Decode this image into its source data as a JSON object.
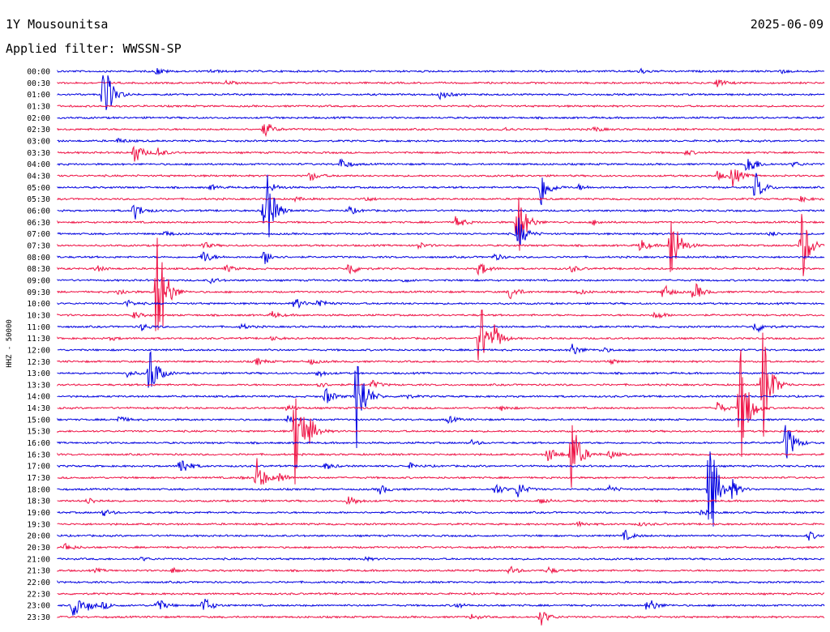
{
  "header": {
    "station": "1Y Mousounitsa",
    "date": "2025-06-09",
    "filter": "Applied filter: WWSSN-SP"
  },
  "axis": {
    "ylabel": "HHZ - 50000"
  },
  "colors": {
    "trace_a": "#0000e0",
    "trace_b": "#ee1144",
    "background": "#ffffff",
    "text": "#000000"
  },
  "chart_data": {
    "type": "line",
    "title": "",
    "xlabel": "",
    "ylabel": "HHZ - 50000",
    "grid": false,
    "legend": "none",
    "row_labels": [
      "00:00",
      "00:30",
      "01:00",
      "01:30",
      "02:00",
      "02:30",
      "03:00",
      "03:30",
      "04:00",
      "04:30",
      "05:00",
      "05:30",
      "06:00",
      "06:30",
      "07:00",
      "07:30",
      "08:00",
      "08:30",
      "09:00",
      "09:30",
      "10:00",
      "10:30",
      "11:00",
      "11:30",
      "12:00",
      "12:30",
      "13:00",
      "13:30",
      "14:00",
      "14:30",
      "15:00",
      "15:30",
      "16:00",
      "16:30",
      "17:00",
      "17:30",
      "18:00",
      "18:30",
      "19:00",
      "19:30",
      "20:00",
      "20:30",
      "21:00",
      "21:30",
      "22:00",
      "22:30",
      "23:00",
      "23:30"
    ],
    "row_colors": [
      "#0000e0",
      "#ee1144"
    ],
    "events": [
      [
        [
          0.13,
          0.04
        ],
        [
          0.2,
          0.02
        ],
        [
          0.76,
          0.03
        ],
        [
          0.94,
          0.03
        ]
      ],
      [
        [
          0.22,
          0.02
        ],
        [
          0.86,
          0.05
        ]
      ],
      [
        [
          0.06,
          0.45
        ],
        [
          0.5,
          0.06
        ]
      ],
      [],
      [],
      [
        [
          0.27,
          0.1
        ],
        [
          0.58,
          0.03
        ],
        [
          0.7,
          0.03
        ]
      ],
      [
        [
          0.08,
          0.03
        ]
      ],
      [
        [
          0.1,
          0.14
        ],
        [
          0.13,
          0.06
        ],
        [
          0.82,
          0.03
        ]
      ],
      [
        [
          0.37,
          0.07
        ],
        [
          0.9,
          0.16
        ],
        [
          0.96,
          0.03
        ]
      ],
      [
        [
          0.33,
          0.06
        ],
        [
          0.86,
          0.05
        ],
        [
          0.88,
          0.14
        ]
      ],
      [
        [
          0.2,
          0.03
        ],
        [
          0.28,
          0.04
        ],
        [
          0.63,
          0.25
        ],
        [
          0.68,
          0.03
        ],
        [
          0.91,
          0.18
        ]
      ],
      [
        [
          0.31,
          0.02
        ],
        [
          0.4,
          0.03
        ],
        [
          0.97,
          0.03
        ]
      ],
      [
        [
          0.1,
          0.11
        ],
        [
          0.27,
          0.64
        ],
        [
          0.38,
          0.05
        ]
      ],
      [
        [
          0.52,
          0.08
        ],
        [
          0.6,
          0.45
        ],
        [
          0.7,
          0.03
        ]
      ],
      [
        [
          0.14,
          0.03
        ],
        [
          0.6,
          0.22
        ],
        [
          0.93,
          0.03
        ]
      ],
      [
        [
          0.19,
          0.04
        ],
        [
          0.47,
          0.04
        ],
        [
          0.76,
          0.08
        ],
        [
          0.8,
          0.48
        ],
        [
          0.97,
          0.48
        ]
      ],
      [
        [
          0.19,
          0.08
        ],
        [
          0.27,
          0.09
        ],
        [
          0.57,
          0.04
        ]
      ],
      [
        [
          0.05,
          0.04
        ],
        [
          0.22,
          0.04
        ],
        [
          0.38,
          0.09
        ],
        [
          0.55,
          0.09
        ],
        [
          0.67,
          0.04
        ]
      ],
      [
        [
          0.2,
          0.03
        ],
        [
          0.45,
          0.02
        ]
      ],
      [
        [
          0.08,
          0.04
        ],
        [
          0.13,
          0.95
        ],
        [
          0.59,
          0.09
        ],
        [
          0.68,
          0.03
        ],
        [
          0.79,
          0.09
        ],
        [
          0.83,
          0.12
        ]
      ],
      [
        [
          0.09,
          0.04
        ],
        [
          0.31,
          0.07
        ],
        [
          0.34,
          0.06
        ]
      ],
      [
        [
          0.1,
          0.04
        ],
        [
          0.28,
          0.04
        ],
        [
          0.78,
          0.05
        ]
      ],
      [
        [
          0.11,
          0.04
        ],
        [
          0.24,
          0.03
        ],
        [
          0.91,
          0.08
        ]
      ],
      [
        [
          0.07,
          0.02
        ],
        [
          0.28,
          0.02
        ],
        [
          0.55,
          0.52
        ],
        [
          0.57,
          0.12
        ]
      ],
      [
        [
          0.67,
          0.08
        ],
        [
          0.71,
          0.03
        ]
      ],
      [
        [
          0.26,
          0.04
        ],
        [
          0.33,
          0.03
        ],
        [
          0.72,
          0.03
        ]
      ],
      [
        [
          0.09,
          0.04
        ],
        [
          0.12,
          0.35
        ],
        [
          0.34,
          0.04
        ]
      ],
      [
        [
          0.34,
          0.04
        ],
        [
          0.41,
          0.05
        ],
        [
          0.92,
          0.72
        ]
      ],
      [
        [
          0.35,
          0.1
        ],
        [
          0.39,
          0.65
        ],
        [
          0.45,
          0.04
        ]
      ],
      [
        [
          0.3,
          0.04
        ],
        [
          0.58,
          0.03
        ],
        [
          0.86,
          0.08
        ],
        [
          0.89,
          0.8
        ]
      ],
      [
        [
          0.08,
          0.04
        ],
        [
          0.3,
          0.04
        ],
        [
          0.51,
          0.04
        ]
      ],
      [
        [
          0.31,
          0.7
        ],
        [
          0.33,
          0.1
        ]
      ],
      [
        [
          0.95,
          0.28
        ],
        [
          0.54,
          0.03
        ]
      ],
      [
        [
          0.64,
          0.1
        ],
        [
          0.67,
          0.5
        ],
        [
          0.72,
          0.05
        ]
      ],
      [
        [
          0.16,
          0.14
        ],
        [
          0.35,
          0.04
        ],
        [
          0.46,
          0.03
        ]
      ],
      [
        [
          0.24,
          0.01
        ],
        [
          0.26,
          0.22
        ],
        [
          0.29,
          0.06
        ]
      ],
      [
        [
          0.42,
          0.06
        ],
        [
          0.57,
          0.08
        ],
        [
          0.6,
          0.1
        ],
        [
          0.72,
          0.04
        ],
        [
          0.85,
          0.8
        ],
        [
          0.88,
          0.1
        ]
      ],
      [
        [
          0.04,
          0.04
        ],
        [
          0.38,
          0.07
        ],
        [
          0.63,
          0.04
        ]
      ],
      [
        [
          0.06,
          0.04
        ],
        [
          0.84,
          0.03
        ]
      ],
      [
        [
          0.68,
          0.03
        ],
        [
          0.76,
          0.02
        ]
      ],
      [
        [
          0.74,
          0.06
        ],
        [
          0.98,
          0.05
        ]
      ],
      [
        [
          0.01,
          0.05
        ]
      ],
      [
        [
          0.11,
          0.02
        ],
        [
          0.4,
          0.02
        ]
      ],
      [
        [
          0.05,
          0.02
        ],
        [
          0.15,
          0.03
        ],
        [
          0.59,
          0.05
        ],
        [
          0.64,
          0.04
        ]
      ],
      [],
      [],
      [
        [
          0.02,
          0.14
        ],
        [
          0.04,
          0.04
        ],
        [
          0.06,
          0.04
        ],
        [
          0.13,
          0.09
        ],
        [
          0.19,
          0.11
        ],
        [
          0.52,
          0.03
        ],
        [
          0.77,
          0.1
        ]
      ],
      [
        [
          0.54,
          0.03
        ],
        [
          0.63,
          0.1
        ]
      ]
    ]
  }
}
